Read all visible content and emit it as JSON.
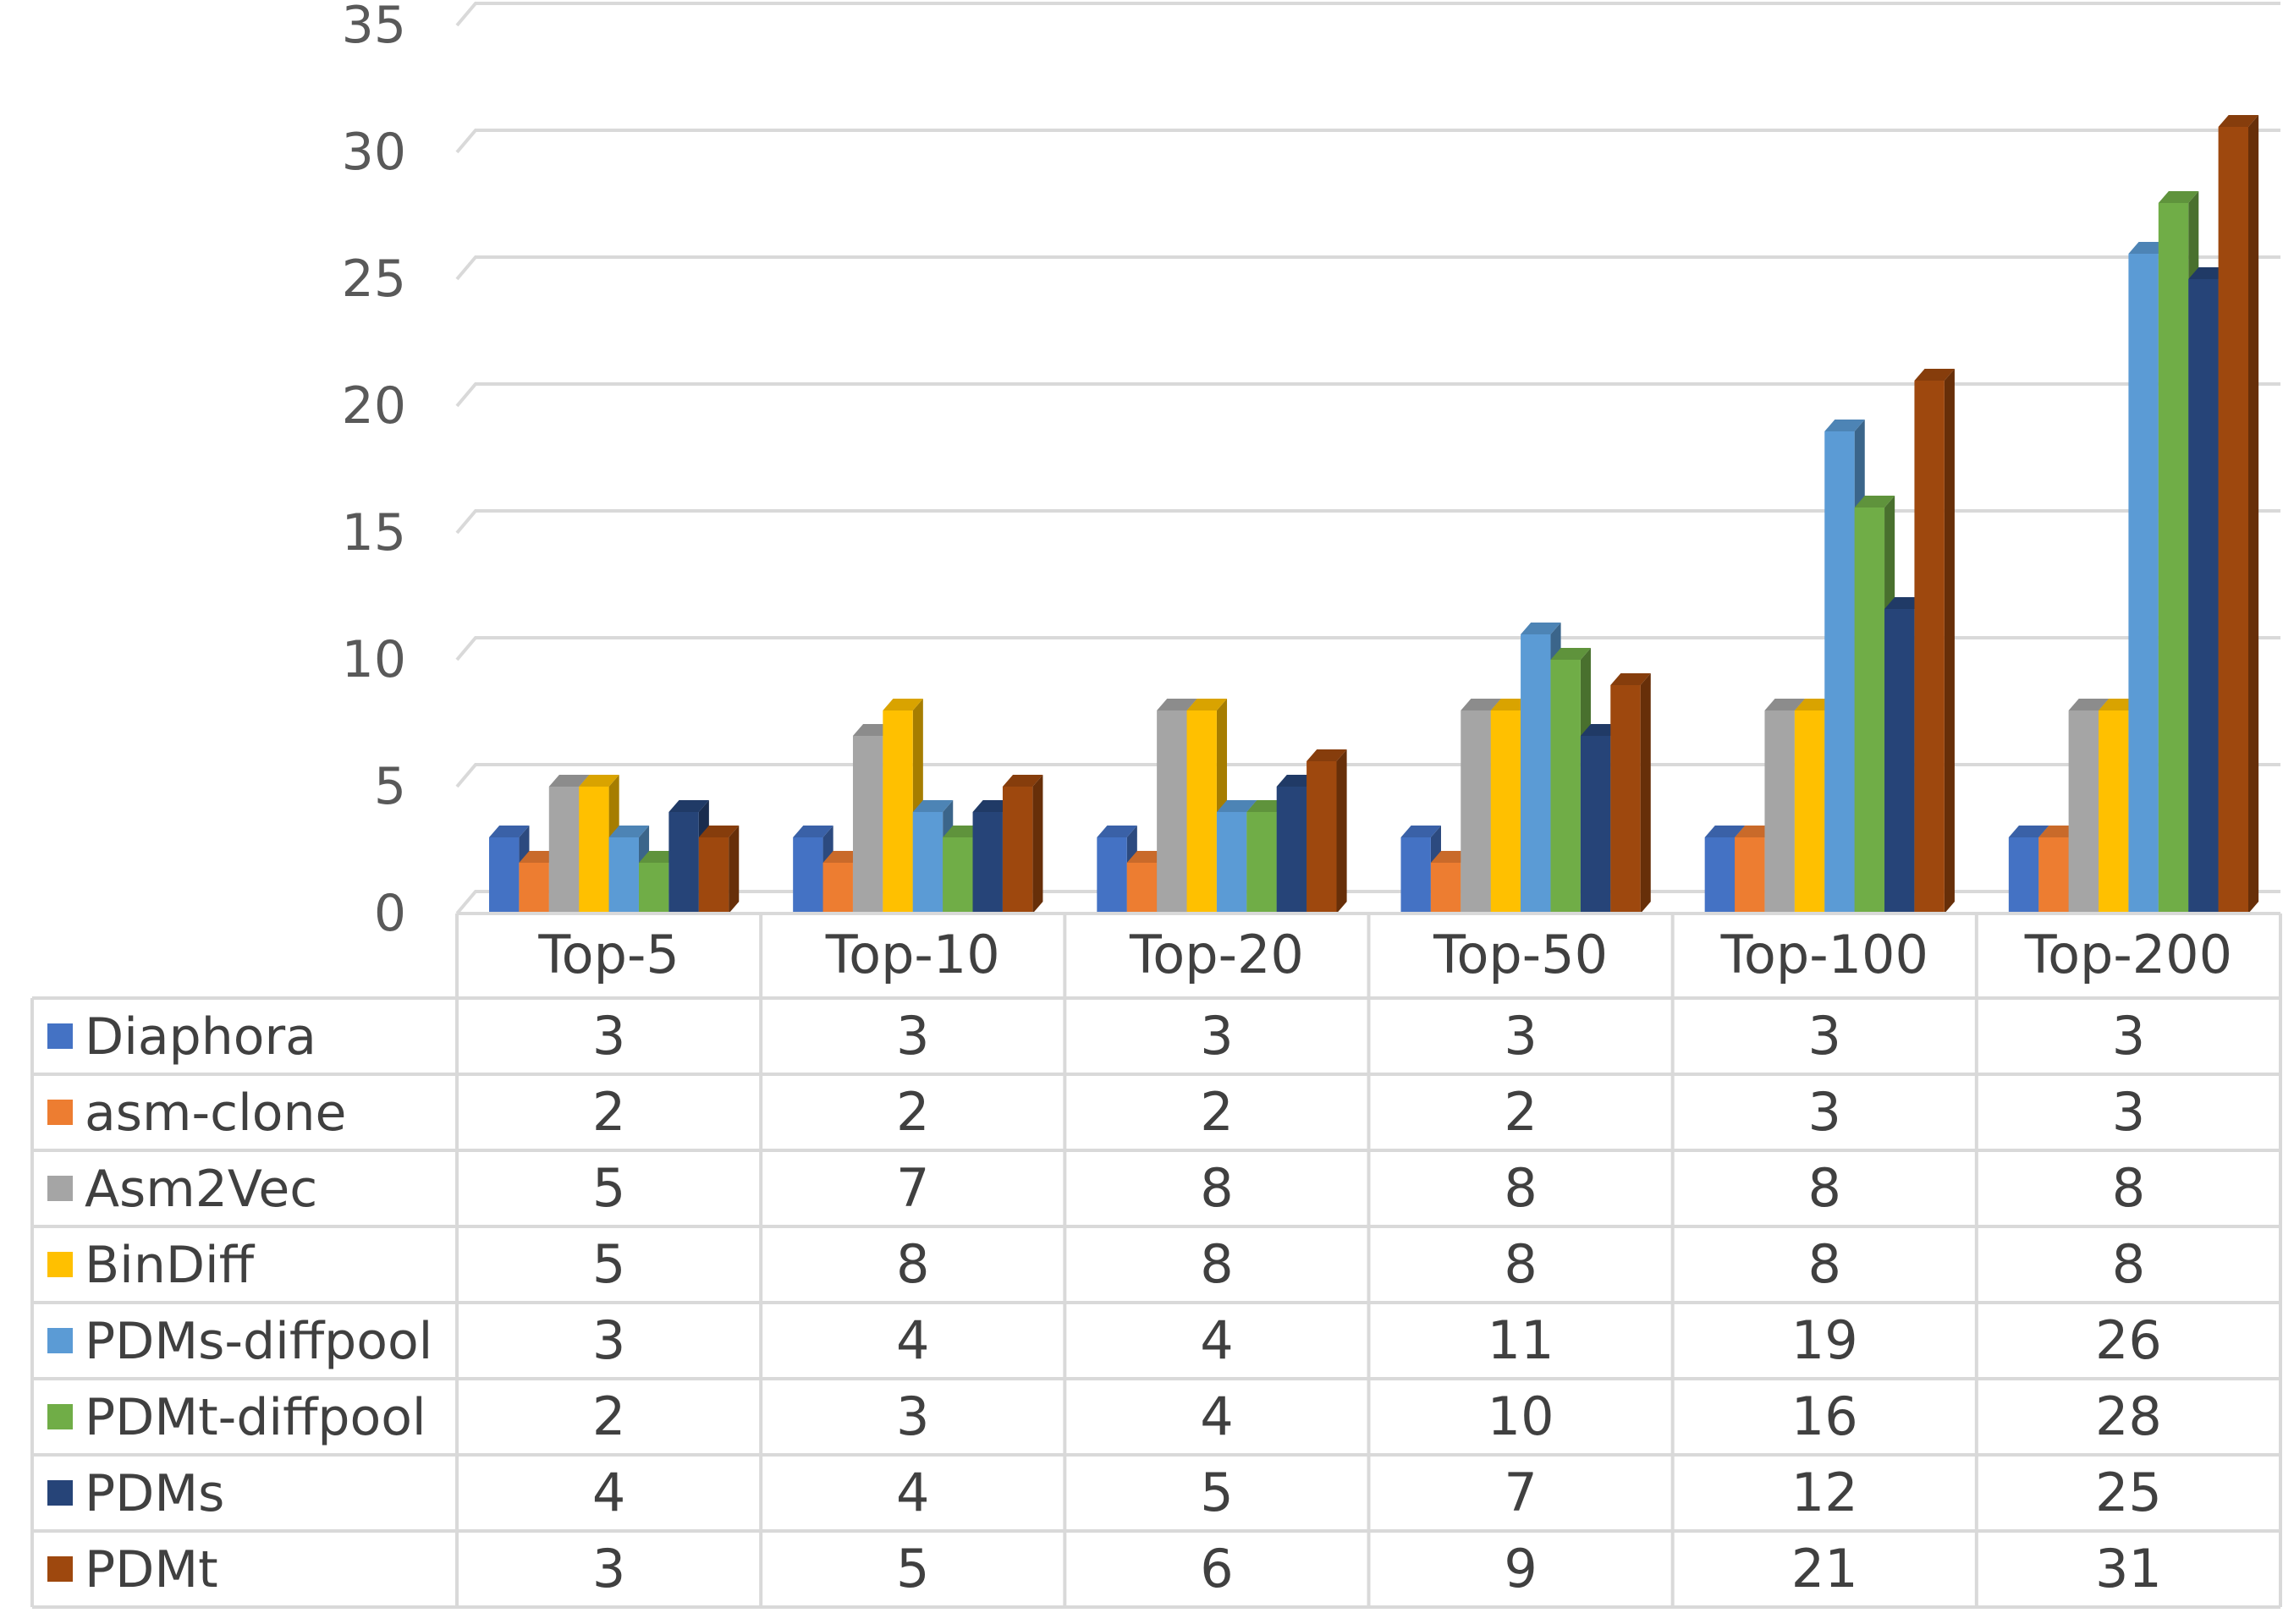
{
  "chart_data": {
    "type": "bar",
    "title": "",
    "xlabel": "",
    "ylabel": "",
    "ylim": [
      0,
      35
    ],
    "yticks": [
      0,
      5,
      10,
      15,
      20,
      25,
      30,
      35
    ],
    "grid": true,
    "style": "3d-clustered-column-with-data-table",
    "categories": [
      "Top-5",
      "Top-10",
      "Top-20",
      "Top-50",
      "Top-100",
      "Top-200"
    ],
    "series": [
      {
        "name": "Diaphora",
        "color": "#4472C4",
        "values": [
          3,
          3,
          3,
          3,
          3,
          3
        ]
      },
      {
        "name": "asm-clone",
        "color": "#ED7D31",
        "values": [
          2,
          2,
          2,
          2,
          3,
          3
        ]
      },
      {
        "name": "Asm2Vec",
        "color": "#A5A5A5",
        "values": [
          5,
          7,
          8,
          8,
          8,
          8
        ]
      },
      {
        "name": "BinDiff",
        "color": "#FFC000",
        "values": [
          5,
          8,
          8,
          8,
          8,
          8
        ]
      },
      {
        "name": "PDMs-diffpool",
        "color": "#5B9BD5",
        "values": [
          3,
          4,
          4,
          11,
          19,
          26
        ]
      },
      {
        "name": "PDMt-diffpool",
        "color": "#70AD47",
        "values": [
          2,
          3,
          4,
          10,
          16,
          28
        ]
      },
      {
        "name": "PDMs",
        "color": "#264478",
        "values": [
          4,
          4,
          5,
          7,
          12,
          25
        ]
      },
      {
        "name": "PDMt",
        "color": "#9E480E",
        "values": [
          3,
          5,
          6,
          9,
          21,
          31
        ]
      }
    ]
  }
}
